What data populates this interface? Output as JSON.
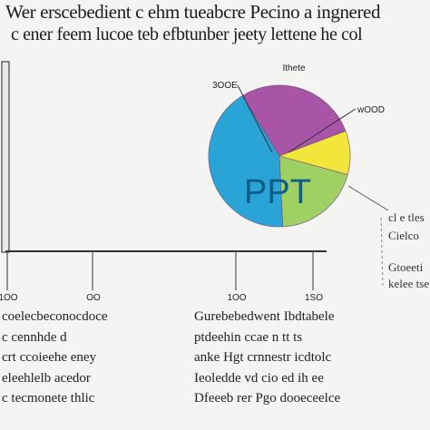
{
  "title": {
    "line1": "Wer erscebedient  c  ehm tueabcre  Pecino  a  ingnered",
    "line2": "c  ener   feem  lucoe  teb  efbtunber  jeety  lettene he  col"
  },
  "chart_data": {
    "type": "pie",
    "pie_label": "PPT",
    "slices": [
      {
        "value": 28,
        "color": "#a855a8"
      },
      {
        "value": 10,
        "color": "#f2e63a"
      },
      {
        "value": 20,
        "color": "#9ed063"
      },
      {
        "value": 42,
        "color": "#2aa3d6"
      }
    ],
    "callouts": [
      "Ithete",
      "3OOE",
      "wOOD"
    ],
    "side_labels": [
      "cl e  tles",
      "Cielco",
      "Gtoeeti",
      "kelee  tse"
    ],
    "x_ticks": [
      "1OO",
      "OO",
      "1OO",
      "1SO"
    ]
  },
  "columns": {
    "left": [
      "coelecbeconocdoce",
      "c  cennhde  d",
      "crt  ccoieehe  eney",
      "eleehlelb  acedor",
      "c  tecmonete  thlic"
    ],
    "right": [
      "Gurebebedwent  Ibdtabele",
      "ptdeehin  ccae  n  tt   ts",
      "anke  Hgt  crnnestr  icdtolc",
      "Ieoledde  vd  cio  ed  ih  ee",
      "Dfeeeb  rer  Pgo  dooeceelce"
    ]
  }
}
